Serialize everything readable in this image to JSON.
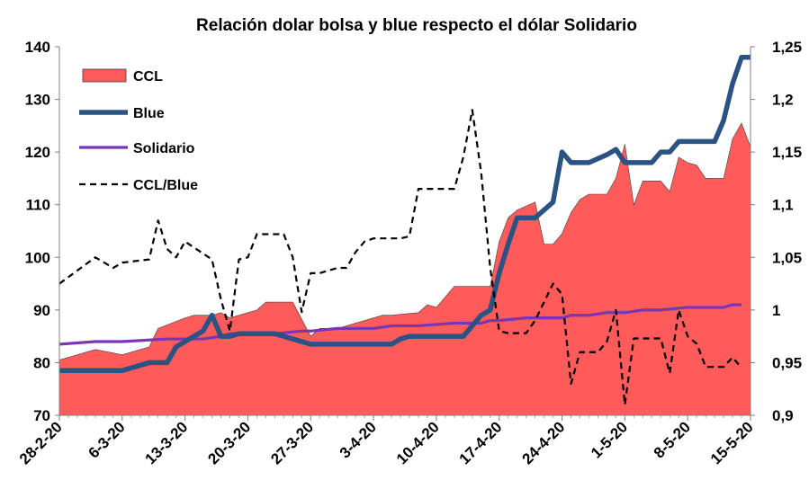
{
  "chart_data": {
    "type": "line",
    "title": "Relación dolar bolsa y blue respecto el dólar Solidario",
    "x_tick_labels": [
      "28-2-20",
      "6-3-20",
      "13-3-20",
      "20-3-20",
      "27-3-20",
      "3-4-20",
      "10-4-20",
      "17-4-20",
      "24-4-20",
      "1-5-20",
      "8-5-20",
      "15-5-20"
    ],
    "y_left": {
      "min": 70,
      "max": 140,
      "ticks": [
        "70",
        "80",
        "90",
        "100",
        "110",
        "120",
        "130",
        "140"
      ]
    },
    "y_right": {
      "min": 0.9,
      "max": 1.25,
      "ticks": [
        "0,9",
        "0,95",
        "1",
        "1,05",
        "1,1",
        "1,15",
        "1,2",
        "1,25"
      ]
    },
    "x_range": [
      0,
      77
    ],
    "legend_position": "top-left",
    "colors": {
      "ccl_fill": "#ff5b5b",
      "blue": "#2a5282",
      "solidario": "#7b35b0",
      "ratio": "#000000"
    },
    "series": [
      {
        "name": "CCL",
        "kind": "area",
        "axis": "left",
        "x": [
          0,
          4,
          7,
          10,
          11,
          14,
          15,
          17,
          18,
          19,
          21,
          22,
          23,
          24,
          26,
          28,
          29,
          31,
          32,
          36,
          37,
          40,
          41,
          42,
          44,
          45,
          46,
          48,
          49,
          50,
          51,
          53,
          54,
          55,
          56,
          57,
          58,
          59,
          60,
          61,
          62,
          63,
          64,
          65,
          66,
          67,
          68,
          69,
          70,
          71,
          72,
          73,
          74,
          75,
          76,
          77
        ],
        "y": [
          80.5,
          82.5,
          81.5,
          83,
          86.5,
          88.5,
          89,
          89,
          89.5,
          88.5,
          89.5,
          90,
          91.5,
          91.5,
          91.5,
          85,
          86.5,
          86.5,
          87,
          89,
          89,
          89.5,
          91,
          90.5,
          94.5,
          94.5,
          94.5,
          94.5,
          103,
          107.5,
          109,
          110.5,
          102.5,
          102.5,
          104.5,
          108.5,
          111,
          112,
          112,
          112,
          115,
          121.5,
          110,
          114.5,
          114.5,
          114.5,
          112.5,
          119,
          118,
          117.5,
          115,
          115,
          115,
          122.5,
          125.5,
          121
        ]
      },
      {
        "name": "Blue",
        "kind": "line",
        "axis": "left",
        "x": [
          0,
          7,
          10,
          12,
          13,
          14,
          15,
          16,
          17,
          18,
          19,
          20,
          24,
          26,
          27,
          28,
          29,
          31,
          32,
          33,
          37,
          38,
          39,
          40,
          44,
          45,
          47,
          48,
          49,
          50,
          51,
          53,
          55,
          56,
          57,
          58,
          59,
          61,
          62,
          63,
          64,
          65,
          66,
          67,
          68,
          69,
          70,
          71,
          72,
          73,
          74,
          75,
          76,
          77
        ],
        "y": [
          78.5,
          78.5,
          80,
          80,
          83,
          84,
          85,
          86,
          89,
          85,
          85,
          85.5,
          85.5,
          84.5,
          84,
          83.5,
          83.5,
          83.5,
          83.5,
          83.5,
          83.5,
          84.5,
          85,
          85,
          85,
          85,
          89,
          90,
          97,
          102.5,
          107.5,
          107.5,
          110.5,
          120,
          118,
          118,
          118,
          119.5,
          120.5,
          118,
          118,
          118,
          118,
          120,
          120,
          122,
          122,
          122,
          122,
          122,
          126,
          133,
          138,
          138
        ]
      },
      {
        "name": "Solidario",
        "kind": "line",
        "axis": "left",
        "x": [
          0,
          4,
          7,
          12,
          16,
          18,
          19,
          24,
          27,
          28,
          31,
          35,
          37,
          40,
          44,
          45,
          47,
          48,
          49,
          52,
          53,
          55,
          56,
          57,
          59,
          61,
          63,
          65,
          67,
          70,
          74,
          75,
          76
        ],
        "y": [
          83.5,
          84,
          84,
          84.5,
          84.5,
          85,
          85.5,
          85.5,
          86,
          86,
          86.5,
          86.5,
          87,
          87,
          87.5,
          87.5,
          87.5,
          88,
          88,
          88.5,
          88.5,
          88.5,
          88.5,
          89,
          89,
          89.5,
          89.5,
          90,
          90,
          90.5,
          90.5,
          91,
          91
        ]
      },
      {
        "name": "CCL/Blue",
        "kind": "dashed-line",
        "axis": "right",
        "x": [
          0,
          4,
          6,
          7,
          10,
          11,
          12,
          13,
          14,
          17,
          18,
          19,
          20,
          21,
          22,
          23,
          24,
          25,
          26,
          27,
          28,
          29,
          31,
          32,
          33,
          34,
          35,
          36,
          38,
          39,
          40,
          41,
          42,
          43,
          44,
          45,
          46,
          47,
          48,
          49,
          50,
          51,
          52,
          53,
          55,
          56,
          57,
          58,
          59,
          60,
          61,
          62,
          63,
          64,
          65,
          66,
          67,
          68,
          69,
          70,
          71,
          72,
          73,
          74,
          75,
          76
        ],
        "y": [
          1.025,
          1.05,
          1.04,
          1.045,
          1.048,
          1.085,
          1.058,
          1.05,
          1.065,
          1.048,
          1.01,
          0.98,
          1.048,
          1.05,
          1.072,
          1.072,
          1.072,
          1.072,
          1.05,
          0.998,
          1.035,
          1.035,
          1.04,
          1.04,
          1.055,
          1.065,
          1.068,
          1.068,
          1.068,
          1.07,
          1.115,
          1.115,
          1.115,
          1.115,
          1.115,
          1.145,
          1.19,
          1.13,
          1.04,
          0.98,
          0.978,
          0.978,
          0.978,
          0.99,
          1.025,
          1.015,
          0.93,
          0.96,
          0.96,
          0.96,
          0.97,
          1.0,
          0.91,
          0.973,
          0.973,
          0.973,
          0.973,
          0.94,
          1.0,
          0.975,
          0.968,
          0.946,
          0.946,
          0.946,
          0.955,
          0.945
        ]
      }
    ]
  }
}
